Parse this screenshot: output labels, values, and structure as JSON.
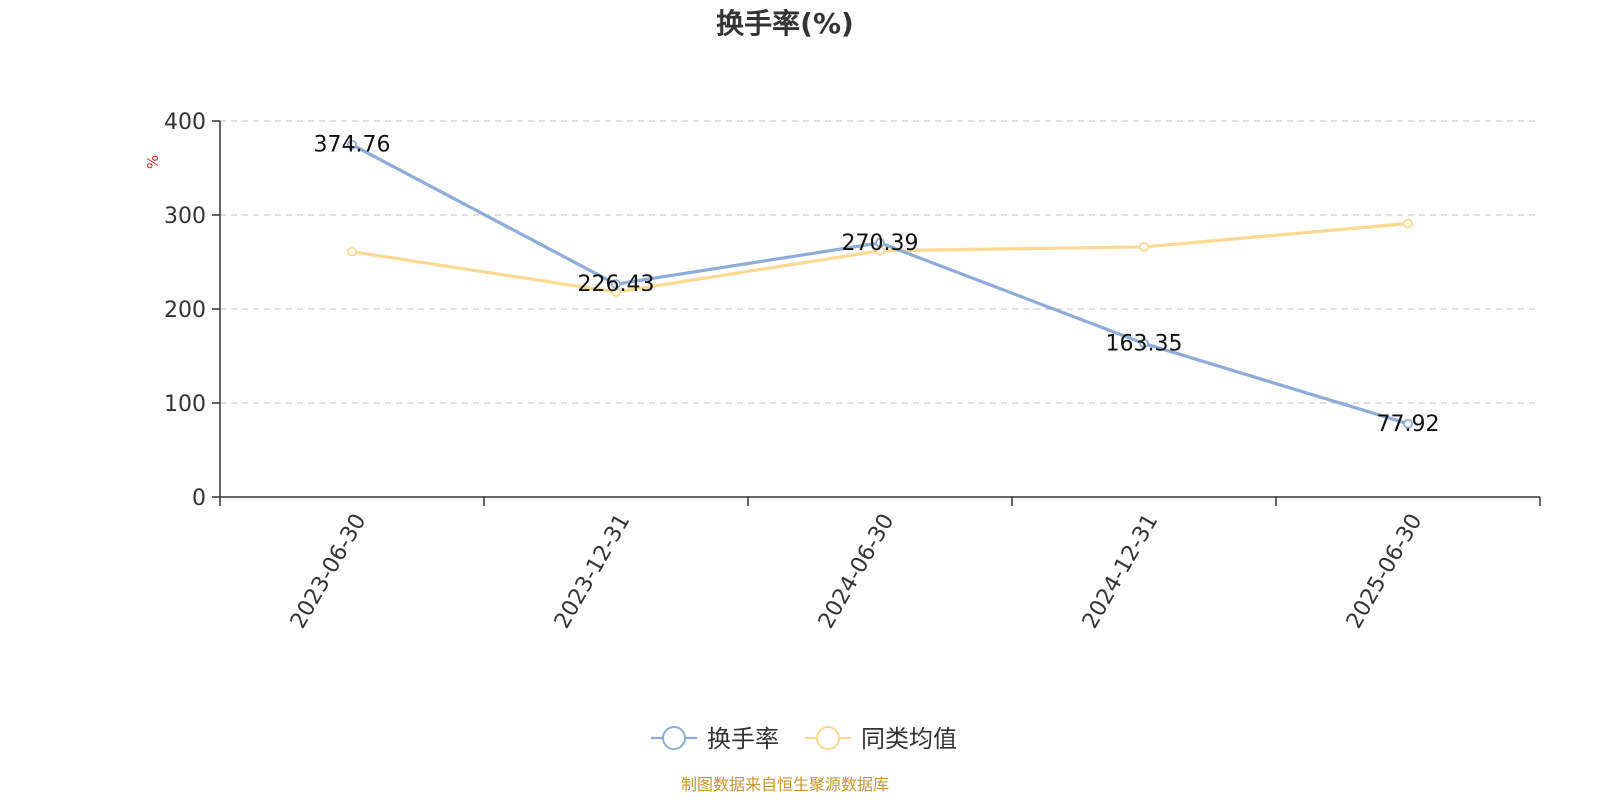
{
  "chart_data": {
    "type": "line",
    "title": "换手率(%)",
    "ylabel": "%",
    "ylim": [
      0,
      400
    ],
    "yticks": [
      0,
      100,
      200,
      300,
      400
    ],
    "categories": [
      "2023-06-30",
      "2023-12-31",
      "2024-06-30",
      "2024-12-31",
      "2025-06-30"
    ],
    "series": [
      {
        "name": "换手率",
        "color": "#8eacd8",
        "values": [
          374.76,
          226.43,
          270.39,
          163.35,
          77.92
        ],
        "data_labels": [
          "374.76",
          "226.43",
          "270.39",
          "163.35",
          "77.92"
        ]
      },
      {
        "name": "同类均值",
        "color": "#fdd992",
        "values": [
          261,
          218,
          262,
          266,
          291
        ]
      }
    ],
    "grid": true,
    "legend_position": "bottom-center"
  },
  "source_text": "制图数据来自恒生聚源数据库",
  "colors": {
    "unit": "#e0282a",
    "source": "#c8962e",
    "axis": "#333333",
    "grid": "#cccccc"
  }
}
